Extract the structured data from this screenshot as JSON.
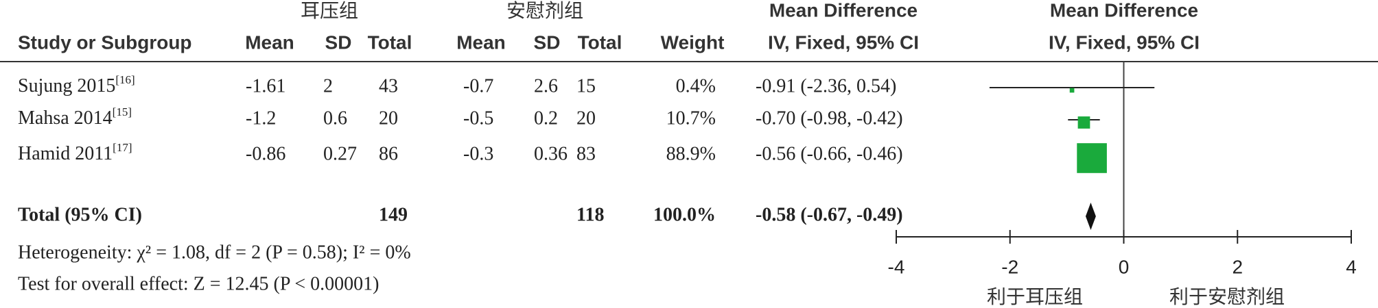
{
  "chart_data": {
    "type": "forest",
    "group_headers": [
      "耳压组",
      "安慰剂组"
    ],
    "md_header": "Mean Difference",
    "md_subheader": "IV, Fixed, 95% CI",
    "columns": [
      "Study or Subgroup",
      "Mean",
      "SD",
      "Total",
      "Mean",
      "SD",
      "Total",
      "Weight"
    ],
    "studies": [
      {
        "name": "Sujung 2015",
        "ref": "[16]",
        "exp_mean": -1.61,
        "exp_sd": 2,
        "exp_total": 43,
        "ctrl_mean": -0.7,
        "ctrl_sd": 2.6,
        "ctrl_total": 15,
        "weight": 0.4,
        "weight_label": "0.4%",
        "md": -0.91,
        "ci_low": -2.36,
        "ci_high": 0.54,
        "ci_label": "-0.91 (-2.36, 0.54)"
      },
      {
        "name": "Mahsa 2014",
        "ref": "[15]",
        "exp_mean": -1.2,
        "exp_sd": 0.6,
        "exp_total": 20,
        "ctrl_mean": -0.5,
        "ctrl_sd": 0.2,
        "ctrl_total": 20,
        "weight": 10.7,
        "weight_label": "10.7%",
        "md": -0.7,
        "ci_low": -0.98,
        "ci_high": -0.42,
        "ci_label": "-0.70 (-0.98, -0.42)"
      },
      {
        "name": "Hamid 2011",
        "ref": "[17]",
        "exp_mean": -0.86,
        "exp_sd": 0.27,
        "exp_total": 86,
        "ctrl_mean": -0.3,
        "ctrl_sd": 0.36,
        "ctrl_total": 83,
        "weight": 88.9,
        "weight_label": "88.9%",
        "md": -0.56,
        "ci_low": -0.66,
        "ci_high": -0.46,
        "ci_label": "-0.56 (-0.66, -0.46)"
      }
    ],
    "total": {
      "name": "Total (95% CI)",
      "exp_total": 149,
      "ctrl_total": 118,
      "weight": 100,
      "weight_label": "100.0%",
      "md": -0.58,
      "ci_low": -0.67,
      "ci_high": -0.49,
      "ci_label": "-0.58 (-0.67, -0.49)"
    },
    "heterogeneity": "Heterogeneity: χ² = 1.08, df = 2 (P = 0.58); I² = 0%",
    "overall_effect": "Test for overall effect: Z = 12.45 (P < 0.00001)",
    "xlim": [
      -4,
      4
    ],
    "xticks": [
      -4,
      -2,
      0,
      2,
      4
    ],
    "favours": [
      "利于耳压组",
      "利于安慰剂组"
    ],
    "color": "#1aaa3c"
  }
}
